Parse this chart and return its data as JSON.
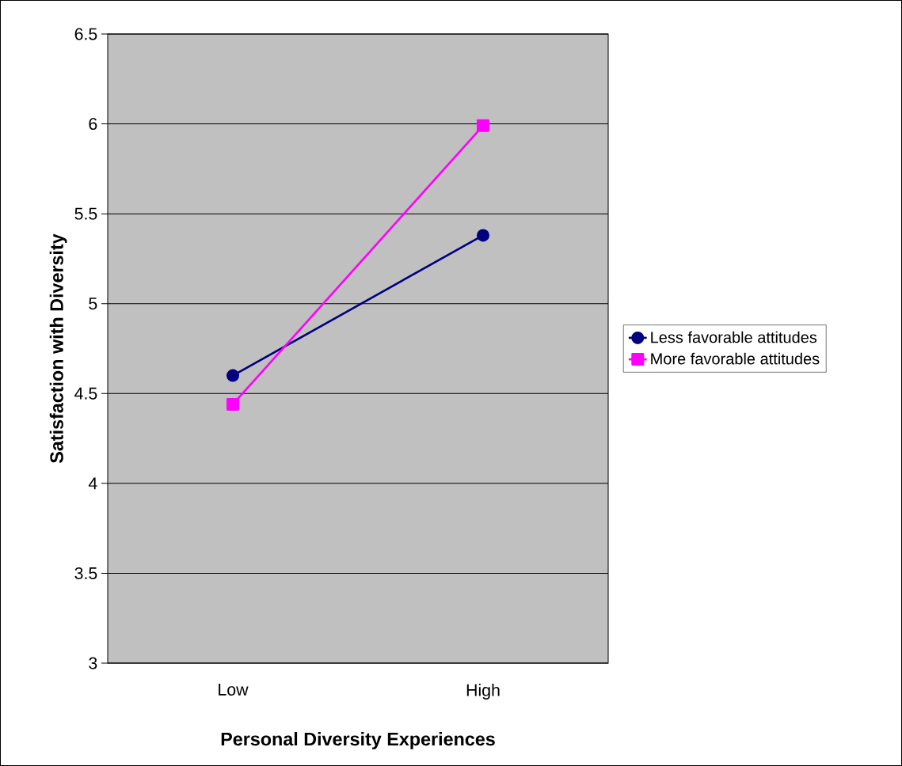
{
  "chart_data": {
    "type": "line",
    "xlabel": "Personal Diversity Experiences",
    "ylabel": "Satisfaction with Diversity",
    "categories": [
      "Low",
      "High"
    ],
    "series": [
      {
        "name": "Less favorable attitudes",
        "color": "#000080",
        "marker": "circle",
        "values": [
          4.6,
          5.38
        ]
      },
      {
        "name": "More favorable attitudes",
        "color": "#ff00ff",
        "marker": "square",
        "values": [
          4.44,
          5.99
        ]
      }
    ],
    "ylim": [
      3,
      6.5
    ],
    "yticks": [
      3,
      3.5,
      4,
      4.5,
      5,
      5.5,
      6,
      6.5
    ],
    "grid": "y",
    "legend": "right"
  }
}
